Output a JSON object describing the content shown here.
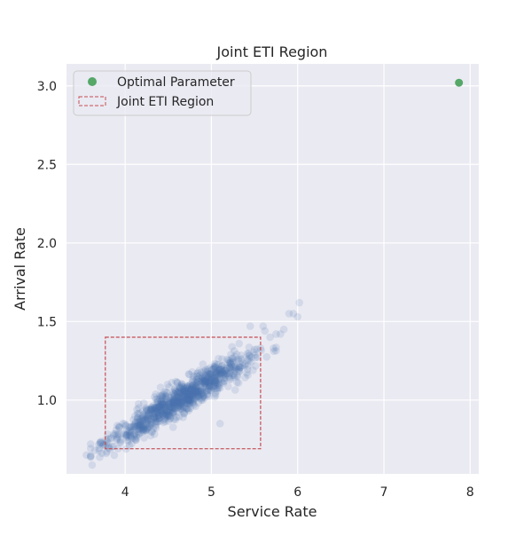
{
  "chart_data": {
    "type": "scatter",
    "title": "Joint ETI Region",
    "xlabel": "Service Rate",
    "ylabel": "Arrival Rate",
    "xlim": [
      3.32,
      8.1
    ],
    "ylim": [
      0.53,
      3.14
    ],
    "xticks": [
      4,
      5,
      6,
      7,
      8
    ],
    "yticks": [
      1.0,
      1.5,
      2.0,
      2.5,
      3.0
    ],
    "xtick_labels": [
      "4",
      "5",
      "6",
      "7",
      "8"
    ],
    "ytick_labels": [
      "1.0",
      "1.5",
      "2.0",
      "2.5",
      "3.0"
    ],
    "grid": true,
    "background": "#eaeaf2",
    "legend": {
      "location": "top-left",
      "entries": [
        {
          "label": "Optimal Parameter",
          "marker": "circle",
          "color": "#55a868"
        },
        {
          "label": "Joint ETI Region",
          "marker": "dashed-rect",
          "color": "#c44e52"
        }
      ]
    },
    "optimal_parameter": {
      "x": 7.87,
      "y": 3.02,
      "color": "#55a868"
    },
    "eti_region": {
      "x_min": 3.77,
      "x_max": 5.57,
      "y_min": 0.69,
      "y_max": 1.4,
      "color": "#c44e52"
    },
    "samples": {
      "color": "#4c72b0",
      "opacity": 0.15,
      "count": 1000,
      "center_x": 4.65,
      "center_y": 1.01,
      "slope": 0.34,
      "x_sd": 0.42,
      "y_noise_sd": 0.05,
      "outliers": [
        [
          3.55,
          0.65
        ],
        [
          3.65,
          0.68
        ],
        [
          3.72,
          0.73
        ],
        [
          3.78,
          0.66
        ],
        [
          5.1,
          0.85
        ],
        [
          5.45,
          1.47
        ],
        [
          5.6,
          1.47
        ],
        [
          5.62,
          1.44
        ],
        [
          5.68,
          1.4
        ],
        [
          5.75,
          1.42
        ],
        [
          5.8,
          1.42
        ],
        [
          5.84,
          1.45
        ],
        [
          5.9,
          1.55
        ],
        [
          5.95,
          1.55
        ],
        [
          6.0,
          1.53
        ],
        [
          6.02,
          1.62
        ],
        [
          5.72,
          1.33
        ]
      ]
    }
  }
}
